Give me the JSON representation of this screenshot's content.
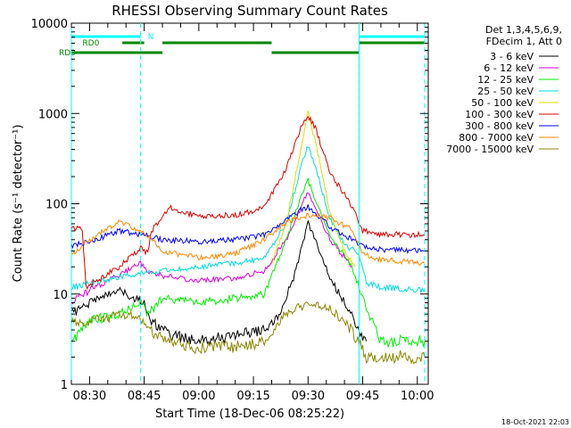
{
  "chart_data": {
    "type": "line",
    "title": "RHESSI Observing Summary Count Rates",
    "xlabel": "Start Time (18-Dec-06 08:25:22)",
    "ylabel": "Count Rate (s⁻¹ detector⁻¹)",
    "yscale": "log",
    "ylim": [
      1,
      10000
    ],
    "xlim": [
      "08:25",
      "10:03"
    ],
    "yticks": [
      "1",
      "10",
      "100",
      "1000",
      "10000"
    ],
    "xticks": [
      "08:30",
      "08:45",
      "09:00",
      "09:15",
      "09:30",
      "09:45",
      "10:00"
    ],
    "legend_header": [
      "Det 1,3,4,5,6,9,",
      "FDecim 1, Att 0"
    ],
    "legend_placement": "outside-right",
    "series": [
      {
        "name": "3 - 6 keV",
        "color": "#000000",
        "points": [
          [
            "08:25",
            6
          ],
          [
            "08:30",
            8
          ],
          [
            "08:38",
            11
          ],
          [
            "08:45",
            8
          ],
          [
            "08:47",
            5
          ],
          [
            "08:52",
            3.5
          ],
          [
            "09:00",
            3
          ],
          [
            "09:10",
            3.5
          ],
          [
            "09:18",
            4
          ],
          [
            "09:22",
            6
          ],
          [
            "09:26",
            15
          ],
          [
            "09:28",
            30
          ],
          [
            "09:30",
            62
          ],
          [
            "09:32",
            40
          ],
          [
            "09:36",
            15
          ],
          [
            "09:40",
            8
          ],
          [
            "09:44",
            4
          ],
          [
            "09:46",
            3
          ]
        ]
      },
      {
        "name": "6 - 12 keV",
        "color": "#dd00dd",
        "points": [
          [
            "08:25",
            8
          ],
          [
            "08:30",
            11
          ],
          [
            "08:38",
            16
          ],
          [
            "08:44",
            22
          ],
          [
            "08:46",
            18
          ],
          [
            "08:50",
            16
          ],
          [
            "09:00",
            14
          ],
          [
            "09:10",
            15
          ],
          [
            "09:18",
            18
          ],
          [
            "09:24",
            40
          ],
          [
            "09:28",
            90
          ],
          [
            "09:30",
            140
          ],
          [
            "09:32",
            90
          ],
          [
            "09:36",
            40
          ],
          [
            "09:42",
            20
          ]
        ]
      },
      {
        "name": "12 - 25 keV",
        "color": "#00ee00",
        "points": [
          [
            "08:25",
            3
          ],
          [
            "08:30",
            5
          ],
          [
            "08:38",
            6
          ],
          [
            "08:44",
            8
          ],
          [
            "08:46",
            6
          ],
          [
            "08:50",
            9
          ],
          [
            "09:00",
            8
          ],
          [
            "09:10",
            9
          ],
          [
            "09:18",
            10
          ],
          [
            "09:24",
            40
          ],
          [
            "09:28",
            120
          ],
          [
            "09:30",
            180
          ],
          [
            "09:32",
            110
          ],
          [
            "09:36",
            45
          ],
          [
            "09:42",
            20
          ],
          [
            "09:46",
            7
          ],
          [
            "09:50",
            3
          ],
          [
            "10:02",
            3
          ]
        ]
      },
      {
        "name": "25 - 50 keV",
        "color": "#00dddd",
        "points": [
          [
            "08:25",
            12
          ],
          [
            "08:30",
            13
          ],
          [
            "08:40",
            16
          ],
          [
            "08:44",
            17
          ],
          [
            "08:50",
            18
          ],
          [
            "09:00",
            20
          ],
          [
            "09:10",
            22
          ],
          [
            "09:18",
            25
          ],
          [
            "09:24",
            60
          ],
          [
            "09:28",
            250
          ],
          [
            "09:30",
            440
          ],
          [
            "09:32",
            260
          ],
          [
            "09:36",
            70
          ],
          [
            "09:40",
            35
          ],
          [
            "09:44",
            28
          ],
          [
            "09:46",
            13
          ],
          [
            "09:50",
            12
          ],
          [
            "10:02",
            11
          ]
        ]
      },
      {
        "name": "50 - 100 keV",
        "color": "#dddd00",
        "points": [
          [
            "09:20",
            22
          ],
          [
            "09:24",
            60
          ],
          [
            "09:28",
            400
          ],
          [
            "09:30",
            1000
          ],
          [
            "09:32",
            500
          ],
          [
            "09:36",
            80
          ],
          [
            "09:40",
            30
          ],
          [
            "09:43",
            20
          ]
        ]
      },
      {
        "name": "100 - 300 keV",
        "color": "#dd0000",
        "points": [
          [
            "08:25",
            55
          ],
          [
            "08:28",
            52
          ],
          [
            "08:29",
            12
          ],
          [
            "08:32",
            14
          ],
          [
            "08:38",
            20
          ],
          [
            "08:44",
            32
          ],
          [
            "08:46",
            28
          ],
          [
            "08:47",
            50
          ],
          [
            "08:52",
            90
          ],
          [
            "09:00",
            72
          ],
          [
            "09:10",
            75
          ],
          [
            "09:18",
            90
          ],
          [
            "09:24",
            250
          ],
          [
            "09:28",
            700
          ],
          [
            "09:30",
            950
          ],
          [
            "09:32",
            700
          ],
          [
            "09:36",
            220
          ],
          [
            "09:42",
            95
          ],
          [
            "09:45",
            50
          ],
          [
            "09:50",
            46
          ],
          [
            "10:02",
            45
          ]
        ]
      },
      {
        "name": "300 - 800 keV",
        "color": "#0000ff",
        "points": [
          [
            "08:25",
            34
          ],
          [
            "08:30",
            38
          ],
          [
            "08:38",
            50
          ],
          [
            "08:45",
            45
          ],
          [
            "08:50",
            40
          ],
          [
            "09:00",
            38
          ],
          [
            "09:10",
            40
          ],
          [
            "09:18",
            45
          ],
          [
            "09:24",
            65
          ],
          [
            "09:28",
            85
          ],
          [
            "09:30",
            92
          ],
          [
            "09:32",
            80
          ],
          [
            "09:36",
            55
          ],
          [
            "09:42",
            40
          ],
          [
            "09:45",
            34
          ],
          [
            "09:50",
            31
          ],
          [
            "10:02",
            30
          ]
        ]
      },
      {
        "name": "800 - 7000 keV",
        "color": "#ff8800",
        "points": [
          [
            "08:25",
            27
          ],
          [
            "08:30",
            40
          ],
          [
            "08:38",
            63
          ],
          [
            "08:45",
            48
          ],
          [
            "08:50",
            30
          ],
          [
            "09:00",
            25
          ],
          [
            "09:10",
            28
          ],
          [
            "09:18",
            40
          ],
          [
            "09:24",
            62
          ],
          [
            "09:30",
            75
          ],
          [
            "09:36",
            70
          ],
          [
            "09:42",
            52
          ],
          [
            "09:45",
            28
          ],
          [
            "09:50",
            24
          ],
          [
            "10:02",
            22
          ]
        ]
      },
      {
        "name": "7000 - 15000 keV",
        "color": "#888800",
        "points": [
          [
            "08:25",
            5
          ],
          [
            "08:30",
            5
          ],
          [
            "08:40",
            6
          ],
          [
            "08:45",
            5
          ],
          [
            "08:48",
            3.5
          ],
          [
            "09:00",
            2.5
          ],
          [
            "09:10",
            2.6
          ],
          [
            "09:18",
            3
          ],
          [
            "09:24",
            6
          ],
          [
            "09:30",
            8
          ],
          [
            "09:36",
            7
          ],
          [
            "09:42",
            4
          ],
          [
            "09:46",
            2
          ],
          [
            "10:02",
            2
          ]
        ]
      }
    ],
    "annotations": {
      "status_bars": [
        {
          "label": "N",
          "color": "#00ffff",
          "segments": [
            [
              "08:25",
              "08:44"
            ],
            [
              "09:44",
              "10:02"
            ]
          ]
        },
        {
          "label": "RD0",
          "color": "#008800",
          "segments": [
            [
              "08:39",
              "08:45"
            ],
            [
              "08:50",
              "09:20"
            ],
            [
              "09:44",
              "10:02"
            ]
          ]
        },
        {
          "label": "RD0",
          "color": "#008800",
          "segments": [
            [
              "08:25",
              "08:50"
            ],
            [
              "09:20",
              "09:44"
            ]
          ]
        }
      ],
      "vlines_dashed": [
        "08:44",
        "09:44",
        "10:02"
      ],
      "vlines_solid": [
        "08:25",
        "09:44"
      ]
    }
  },
  "footer": {
    "timestamp": "18-Oct-2021 22:03"
  }
}
